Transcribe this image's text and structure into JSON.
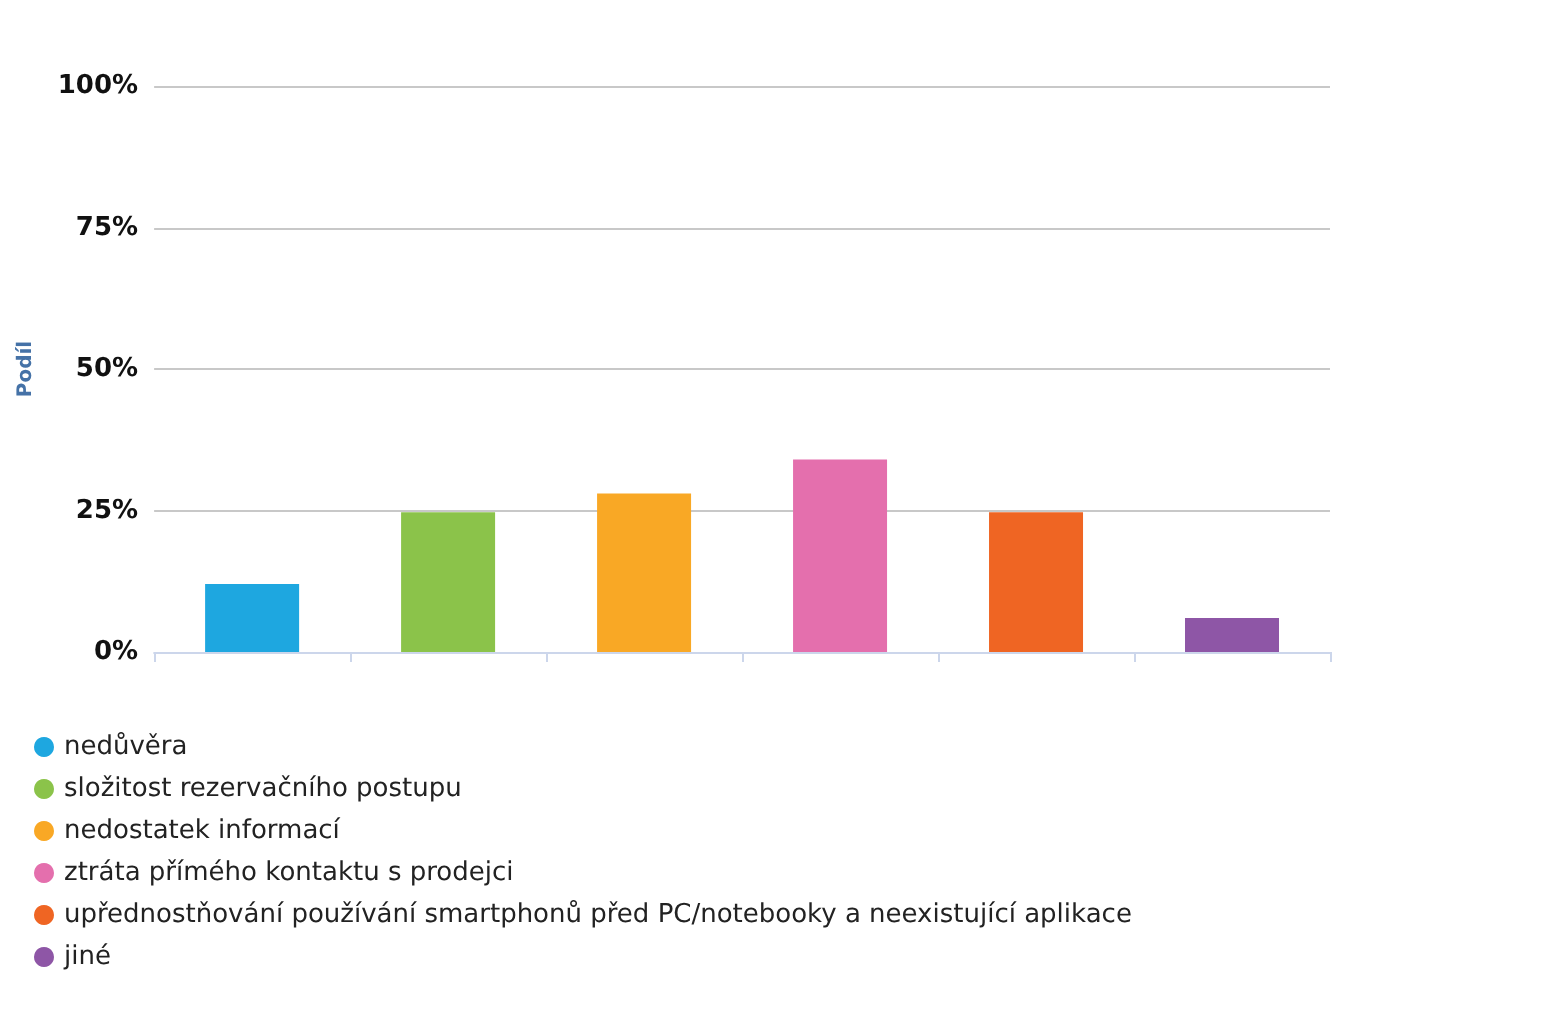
{
  "chart_data": {
    "type": "bar",
    "ylabel": "Podíl",
    "categories": [
      null,
      null,
      null,
      null,
      null,
      null
    ],
    "series": [
      {
        "name": "nedůvěra",
        "color": "#1ea7e0",
        "values": [
          12,
          null,
          null,
          null,
          null,
          null
        ]
      },
      {
        "name": "složitost rezervačního postupu",
        "color": "#8bc34a",
        "values": [
          null,
          24.7,
          null,
          null,
          null,
          null
        ]
      },
      {
        "name": "nedostatek informací",
        "color": "#f9a825",
        "values": [
          null,
          null,
          28,
          null,
          null,
          null
        ]
      },
      {
        "name": "ztráta přímého kontaktu s prodejci",
        "color": "#e46fad",
        "values": [
          null,
          null,
          null,
          34,
          null,
          null
        ]
      },
      {
        "name": "upřednostňování používání smartphonů před PC/notebooky a neexistující aplikace",
        "color": "#ef6523",
        "values": [
          null,
          null,
          null,
          null,
          24.7,
          null
        ]
      },
      {
        "name": "jiné",
        "color": "#8e56a6",
        "values": [
          null,
          null,
          null,
          null,
          null,
          6
        ]
      }
    ],
    "ylim": [
      0,
      100
    ],
    "yticks": [
      {
        "value": 0,
        "label": "0%"
      },
      {
        "value": 25,
        "label": "25%"
      },
      {
        "value": 50,
        "label": "50%"
      },
      {
        "value": 75,
        "label": "75%"
      },
      {
        "value": 100,
        "label": "100%"
      }
    ],
    "grid": "y",
    "legend": "bottom left"
  }
}
